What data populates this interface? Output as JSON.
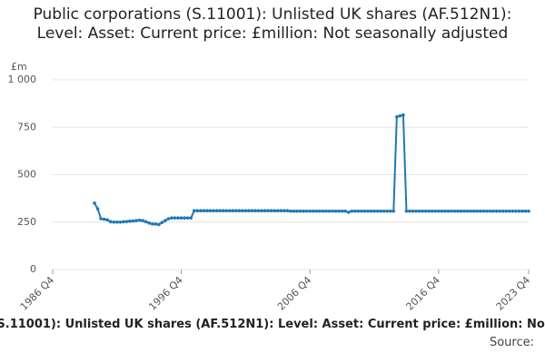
{
  "chart_data": {
    "type": "line",
    "title": "Public corporations (S.11001): Unlisted UK shares (AF.512N1): Level: Asset: Current price: £million: Not seasonally adjusted",
    "source_label": "Source:",
    "y_unit": "£m",
    "categories": [
      "1986 Q4",
      "1987 Q1",
      "1987 Q2",
      "1987 Q3",
      "1987 Q4",
      "1988 Q1",
      "1988 Q2",
      "1988 Q3",
      "1988 Q4",
      "1989 Q1",
      "1989 Q2",
      "1989 Q3",
      "1989 Q4",
      "1990 Q1",
      "1990 Q2",
      "1990 Q3",
      "1990 Q4",
      "1991 Q1",
      "1991 Q2",
      "1991 Q3",
      "1991 Q4",
      "1992 Q1",
      "1992 Q2",
      "1992 Q3",
      "1992 Q4",
      "1993 Q1",
      "1993 Q2",
      "1993 Q3",
      "1993 Q4",
      "1994 Q1",
      "1994 Q2",
      "1994 Q3",
      "1994 Q4",
      "1995 Q1",
      "1995 Q2",
      "1995 Q3",
      "1995 Q4",
      "1996 Q1",
      "1996 Q2",
      "1996 Q3",
      "1996 Q4",
      "1997 Q1",
      "1997 Q2",
      "1997 Q3",
      "1997 Q4",
      "1998 Q1",
      "1998 Q2",
      "1998 Q3",
      "1998 Q4",
      "1999 Q1",
      "1999 Q2",
      "1999 Q3",
      "1999 Q4",
      "2000 Q1",
      "2000 Q2",
      "2000 Q3",
      "2000 Q4",
      "2001 Q1",
      "2001 Q2",
      "2001 Q3",
      "2001 Q4",
      "2002 Q1",
      "2002 Q2",
      "2002 Q3",
      "2002 Q4",
      "2003 Q1",
      "2003 Q2",
      "2003 Q3",
      "2003 Q4",
      "2004 Q1",
      "2004 Q2",
      "2004 Q3",
      "2004 Q4",
      "2005 Q1",
      "2005 Q2",
      "2005 Q3",
      "2005 Q4",
      "2006 Q1",
      "2006 Q2",
      "2006 Q3",
      "2006 Q4",
      "2007 Q1",
      "2007 Q2",
      "2007 Q3",
      "2007 Q4",
      "2008 Q1",
      "2008 Q2",
      "2008 Q3",
      "2008 Q4",
      "2009 Q1",
      "2009 Q2",
      "2009 Q3",
      "2009 Q4",
      "2010 Q1",
      "2010 Q2",
      "2010 Q3",
      "2010 Q4",
      "2011 Q1",
      "2011 Q2",
      "2011 Q3",
      "2011 Q4",
      "2012 Q1",
      "2012 Q2",
      "2012 Q3",
      "2012 Q4",
      "2013 Q1",
      "2013 Q2",
      "2013 Q3",
      "2013 Q4",
      "2014 Q1",
      "2014 Q2",
      "2014 Q3",
      "2014 Q4",
      "2015 Q1",
      "2015 Q2",
      "2015 Q3",
      "2015 Q4",
      "2016 Q1",
      "2016 Q2",
      "2016 Q3",
      "2016 Q4",
      "2017 Q1",
      "2017 Q2",
      "2017 Q3",
      "2017 Q4",
      "2018 Q1",
      "2018 Q2",
      "2018 Q3",
      "2018 Q4",
      "2019 Q1",
      "2019 Q2",
      "2019 Q3",
      "2019 Q4",
      "2020 Q1",
      "2020 Q2",
      "2020 Q3",
      "2020 Q4",
      "2021 Q1",
      "2021 Q2",
      "2021 Q3",
      "2021 Q4",
      "2022 Q1",
      "2022 Q2",
      "2022 Q3",
      "2022 Q4",
      "2023 Q1",
      "2023 Q2",
      "2023 Q3",
      "2023 Q4"
    ],
    "values": [
      null,
      null,
      null,
      null,
      null,
      null,
      null,
      null,
      null,
      null,
      null,
      null,
      null,
      350,
      320,
      268,
      265,
      262,
      252,
      250,
      250,
      250,
      252,
      253,
      255,
      256,
      258,
      260,
      258,
      252,
      245,
      240,
      240,
      237,
      248,
      258,
      268,
      272,
      272,
      272,
      272,
      272,
      272,
      272,
      310,
      310,
      310,
      310,
      310,
      310,
      310,
      310,
      310,
      310,
      310,
      310,
      310,
      310,
      310,
      310,
      310,
      310,
      310,
      310,
      310,
      310,
      310,
      310,
      310,
      310,
      310,
      310,
      310,
      310,
      308,
      308,
      308,
      308,
      308,
      308,
      308,
      308,
      308,
      308,
      308,
      308,
      308,
      308,
      308,
      308,
      308,
      308,
      302,
      308,
      308,
      308,
      308,
      308,
      308,
      308,
      308,
      308,
      308,
      308,
      308,
      308,
      308,
      805,
      810,
      815,
      308,
      308,
      308,
      308,
      308,
      308,
      308,
      308,
      308,
      308,
      308,
      308,
      308,
      308,
      308,
      308,
      308,
      308,
      308,
      308,
      308,
      308,
      308,
      308,
      308,
      308,
      308,
      308,
      308,
      308,
      308,
      308,
      308,
      308,
      308,
      308,
      308,
      308,
      308
    ],
    "color": "#1f78b4",
    "xticks": [
      "1986 Q4",
      "1996 Q4",
      "2006 Q4",
      "2016 Q4",
      "2023 Q4"
    ],
    "ylim": [
      0,
      1000
    ],
    "yticks": [
      0,
      250,
      500,
      750,
      {
        "value": 1000,
        "label": "1 000"
      }
    ],
    "grid": true
  }
}
